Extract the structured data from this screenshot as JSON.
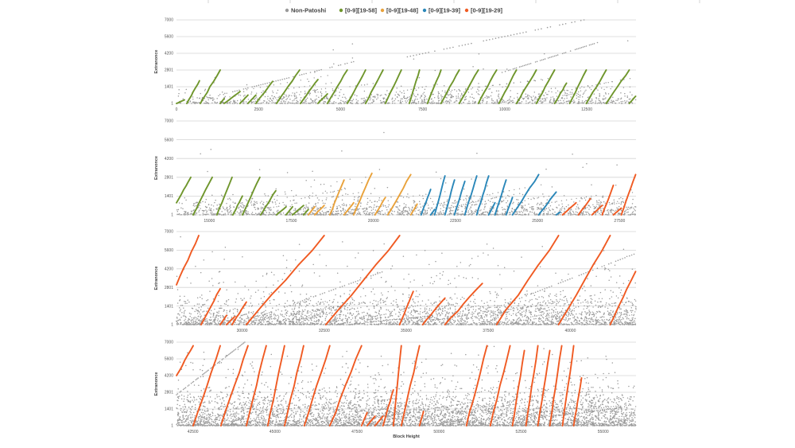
{
  "chart_data": {
    "type": "scatter",
    "xlabel": "Block Height",
    "ylabel": "Extranonce",
    "legend_position": "top",
    "grid": true,
    "legend": [
      {
        "name": "Non-Patoshi",
        "color": "#9a9a9a"
      },
      {
        "name": "[0-9][19-58]",
        "color": "#6f962c"
      },
      {
        "name": "[0-9][19-48]",
        "color": "#e9a23b"
      },
      {
        "name": "[0-9][19-39]",
        "color": "#2a87b9"
      },
      {
        "name": "[0-9][19-29]",
        "color": "#f05a22"
      }
    ],
    "ylim": [
      1,
      7000
    ],
    "yticks": [
      "1",
      "1401",
      "2801",
      "4200",
      "5600",
      "7000"
    ],
    "panels": [
      {
        "xlim": [
          0,
          14000
        ],
        "xticks": [
          "0",
          "2500",
          "5000",
          "7500",
          "10000",
          "12500"
        ]
      },
      {
        "xlim": [
          14000,
          28000
        ],
        "xticks": [
          "15000",
          "17500",
          "20000",
          "22500",
          "25000",
          "27500"
        ]
      },
      {
        "xlim": [
          28000,
          42000
        ],
        "xticks": [
          "30000",
          "32500",
          "35000",
          "37500",
          "40000"
        ]
      },
      {
        "xlim": [
          42000,
          56000
        ],
        "xticks": [
          "42500",
          "45000",
          "47500",
          "50000",
          "52500",
          "55000"
        ]
      }
    ],
    "patoshi_runs_note_format": "[series_index, block_start, block_end, extranonce_start, extranonce_end]",
    "patoshi_runs": [
      [
        1,
        0,
        242,
        1,
        300
      ],
      [
        1,
        315,
        700,
        1,
        1900
      ],
      [
        1,
        726,
        1331,
        1,
        2800
      ],
      [
        1,
        1331,
        1452,
        1,
        400
      ],
      [
        1,
        1452,
        1936,
        1,
        1000
      ],
      [
        1,
        1936,
        2178,
        1,
        700
      ],
      [
        1,
        2178,
        2420,
        1,
        700
      ],
      [
        1,
        2420,
        2928,
        1,
        1850
      ],
      [
        1,
        3049,
        3751,
        1,
        2800
      ],
      [
        1,
        3775,
        4308,
        1,
        2000
      ],
      [
        1,
        4308,
        4598,
        1,
        800
      ],
      [
        1,
        4598,
        5203,
        1,
        2800
      ],
      [
        1,
        5203,
        5760,
        1,
        2800
      ],
      [
        1,
        5760,
        6292,
        1,
        2800
      ],
      [
        1,
        6365,
        6849,
        1,
        2800
      ],
      [
        1,
        7091,
        7405,
        1,
        2800
      ],
      [
        1,
        7647,
        8059,
        1,
        2800
      ],
      [
        1,
        8059,
        8615,
        1,
        2800
      ],
      [
        1,
        8615,
        9196,
        1,
        2800
      ],
      [
        1,
        9196,
        9753,
        1,
        2800
      ],
      [
        1,
        9825,
        10358,
        1,
        2800
      ],
      [
        1,
        10358,
        10963,
        1,
        2800
      ],
      [
        1,
        10963,
        11519,
        1,
        2800
      ],
      [
        1,
        11519,
        11882,
        1,
        1700
      ],
      [
        1,
        11979,
        12487,
        1,
        2800
      ],
      [
        1,
        12487,
        13092,
        1,
        2800
      ],
      [
        1,
        13092,
        13794,
        1,
        2800
      ],
      [
        1,
        13794,
        13988,
        1,
        600
      ],
      [
        1,
        14000,
        14436,
        900,
        2800
      ],
      [
        1,
        14508,
        15089,
        1,
        2800
      ],
      [
        1,
        15234,
        15694,
        1,
        2800
      ],
      [
        1,
        15718,
        16009,
        1,
        1400
      ],
      [
        1,
        16009,
        16541,
        1,
        2800
      ],
      [
        1,
        16565,
        17025,
        1,
        1800
      ],
      [
        1,
        17049,
        17340,
        1,
        600
      ],
      [
        1,
        17340,
        17533,
        1,
        600
      ],
      [
        1,
        17533,
        17872,
        1,
        700
      ],
      [
        1,
        17872,
        18017,
        1,
        400
      ],
      [
        2,
        18017,
        18211,
        1,
        600
      ],
      [
        2,
        18211,
        18501,
        1,
        700
      ],
      [
        2,
        18671,
        19106,
        1,
        2600
      ],
      [
        2,
        19106,
        19397,
        1,
        900
      ],
      [
        2,
        19397,
        19953,
        1,
        3100
      ],
      [
        2,
        20050,
        20365,
        1,
        1300
      ],
      [
        2,
        20437,
        21139,
        1,
        3000
      ],
      [
        2,
        21139,
        21333,
        1,
        800
      ],
      [
        3,
        21454,
        21744,
        1,
        1900
      ],
      [
        3,
        21744,
        21865,
        1,
        400
      ],
      [
        3,
        21865,
        22180,
        1,
        2900
      ],
      [
        3,
        22180,
        22470,
        1,
        2600
      ],
      [
        3,
        22470,
        22785,
        1,
        2500
      ],
      [
        3,
        22785,
        23148,
        1,
        2900
      ],
      [
        3,
        23148,
        23511,
        1,
        2900
      ],
      [
        3,
        23511,
        23704,
        1,
        900
      ],
      [
        3,
        23704,
        24043,
        1,
        2600
      ],
      [
        3,
        24043,
        24237,
        1,
        1300
      ],
      [
        3,
        24237,
        25035,
        1,
        3000
      ],
      [
        3,
        25035,
        25568,
        1,
        1700
      ],
      [
        3,
        25568,
        25689,
        1,
        200
      ],
      [
        4,
        25761,
        26173,
        1,
        900
      ],
      [
        4,
        26245,
        26608,
        1,
        1200
      ],
      [
        4,
        26657,
        26971,
        1,
        700
      ],
      [
        4,
        26971,
        27310,
        1,
        2200
      ],
      [
        4,
        27310,
        27552,
        1,
        500
      ],
      [
        4,
        27552,
        27988,
        1,
        3000
      ],
      [
        4,
        28000,
        28678,
        3000,
        6700
      ],
      [
        4,
        28750,
        29331,
        1,
        2700
      ],
      [
        4,
        29331,
        29525,
        1,
        700
      ],
      [
        4,
        29525,
        29767,
        1,
        600
      ],
      [
        4,
        29694,
        30130,
        1,
        1700
      ],
      [
        4,
        30130,
        32501,
        1,
        6700
      ],
      [
        4,
        32550,
        34800,
        1,
        6700
      ],
      [
        4,
        34800,
        35212,
        1,
        2500
      ],
      [
        4,
        35502,
        36180,
        1,
        2000
      ],
      [
        4,
        36180,
        37317,
        1,
        3100
      ],
      [
        4,
        37753,
        39640,
        1,
        6700
      ],
      [
        4,
        39640,
        41213,
        1,
        6700
      ],
      [
        4,
        41213,
        41988,
        1,
        4000
      ],
      [
        4,
        42000,
        42508,
        4200,
        6700
      ],
      [
        4,
        42508,
        43331,
        1,
        6700
      ],
      [
        4,
        43355,
        44178,
        1,
        6700
      ],
      [
        4,
        44130,
        44735,
        1,
        6700
      ],
      [
        4,
        44783,
        45291,
        1,
        6700
      ],
      [
        4,
        45291,
        45872,
        1,
        6700
      ],
      [
        4,
        45896,
        46671,
        1,
        6700
      ],
      [
        4,
        46671,
        47639,
        1,
        6700
      ],
      [
        4,
        47639,
        47808,
        1,
        1100
      ],
      [
        4,
        47808,
        48050,
        1,
        800
      ],
      [
        4,
        48050,
        48292,
        1,
        800
      ],
      [
        4,
        48292,
        48607,
        1,
        3000
      ],
      [
        4,
        48607,
        48849,
        1,
        6700
      ],
      [
        4,
        48849,
        49405,
        1,
        6700
      ],
      [
        4,
        49405,
        49526,
        1,
        1200
      ],
      [
        4,
        50833,
        51462,
        1,
        6700
      ],
      [
        4,
        51559,
        52164,
        1,
        6700
      ],
      [
        4,
        52237,
        52600,
        1,
        6300
      ],
      [
        4,
        52648,
        53011,
        1,
        6700
      ],
      [
        4,
        53011,
        53374,
        1,
        6300
      ],
      [
        4,
        53374,
        53737,
        1,
        6700
      ],
      [
        4,
        53761,
        54100,
        1,
        6700
      ],
      [
        4,
        54100,
        54342,
        1,
        4000
      ]
    ],
    "non_patoshi_streaks": [
      [
        1452,
        5397,
        800,
        3500
      ],
      [
        6849,
        12415,
        3800,
        7000
      ],
      [
        9922,
        12826,
        2600,
        5100
      ],
      [
        30493,
        34534,
        600,
        4200
      ],
      [
        37753,
        41940,
        1300,
        5300
      ],
      [
        42000,
        44081,
        2600,
        7000
      ]
    ]
  }
}
